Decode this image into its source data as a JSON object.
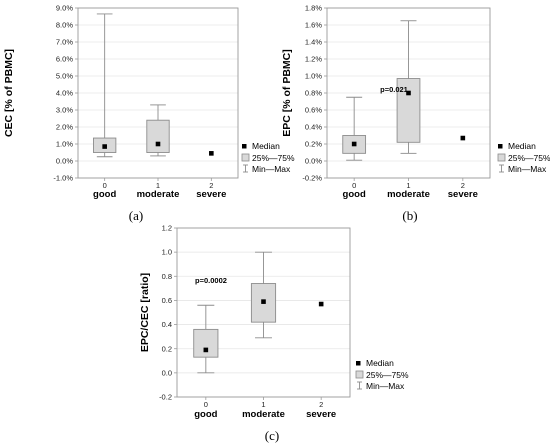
{
  "colors": {
    "box_fill": "#d9d9d9",
    "box_stroke": "#8c8c8c",
    "whisker": "#8c8c8c",
    "median": "#000000",
    "grid": "#e6e6e6",
    "frame": "#9a9a9a"
  },
  "legend": {
    "median": "Median",
    "box": "25%—75%",
    "whisker": "Min—Max"
  },
  "chart_data": [
    {
      "type": "boxplot",
      "panel_label": "(a)",
      "ylabel": "CEC [% of PBMC]",
      "ylim": [
        -1.0,
        9.0
      ],
      "ytick_values": [
        -1,
        0,
        1,
        2,
        3,
        4,
        5,
        6,
        7,
        8,
        9
      ],
      "ytick_labels": [
        "-1.0%",
        "0.0%",
        "1.0%",
        "2.0%",
        "3.0%",
        "4.0%",
        "5.0%",
        "6.0%",
        "7.0%",
        "8.0%",
        "9.0%"
      ],
      "x_ticks": [
        "0",
        "1",
        "2"
      ],
      "categories": [
        "good",
        "moderate",
        "severe"
      ],
      "annotation": "",
      "boxes": [
        {
          "min": 0.25,
          "q1": 0.5,
          "median": 0.85,
          "q3": 1.35,
          "max": 8.65
        },
        {
          "min": 0.3,
          "q1": 0.5,
          "median": 1.0,
          "q3": 2.4,
          "max": 3.3
        },
        {
          "median": 0.45
        }
      ]
    },
    {
      "type": "boxplot",
      "panel_label": "(b)",
      "ylabel": "EPC [% of PBMC]",
      "ylim": [
        -0.2,
        1.8
      ],
      "ytick_values": [
        -0.2,
        0,
        0.2,
        0.4,
        0.6,
        0.8,
        1.0,
        1.2,
        1.4,
        1.6,
        1.8
      ],
      "ytick_labels": [
        "-0.2%",
        "0.0%",
        "0.2%",
        "0.4%",
        "0.6%",
        "0.8%",
        "1.0%",
        "1.2%",
        "1.4%",
        "1.6%",
        "1.8%"
      ],
      "x_ticks": [
        "0",
        "1",
        "2"
      ],
      "categories": [
        "good",
        "moderate",
        "severe"
      ],
      "annotation": "p=0.021",
      "boxes": [
        {
          "min": 0.01,
          "q1": 0.09,
          "median": 0.2,
          "q3": 0.3,
          "max": 0.75
        },
        {
          "min": 0.09,
          "q1": 0.22,
          "median": 0.8,
          "q3": 0.97,
          "max": 1.65
        },
        {
          "median": 0.27
        }
      ]
    },
    {
      "type": "boxplot",
      "panel_label": "(c)",
      "ylabel": "EPC/CEC [ratio]",
      "ylim": [
        -0.2,
        1.2
      ],
      "ytick_values": [
        -0.2,
        0,
        0.2,
        0.4,
        0.6,
        0.8,
        1.0,
        1.2
      ],
      "ytick_labels": [
        "-0.2",
        "0.0",
        "0.2",
        "0.4",
        "0.6",
        "0.8",
        "1.0",
        "1.2"
      ],
      "x_ticks": [
        "0",
        "1",
        "2"
      ],
      "categories": [
        "good",
        "moderate",
        "severe"
      ],
      "annotation": "p=0.0002",
      "boxes": [
        {
          "min": 0.0,
          "q1": 0.13,
          "median": 0.19,
          "q3": 0.36,
          "max": 0.56
        },
        {
          "min": 0.29,
          "q1": 0.42,
          "median": 0.59,
          "q3": 0.74,
          "max": 1.0
        },
        {
          "median": 0.57
        }
      ]
    }
  ]
}
